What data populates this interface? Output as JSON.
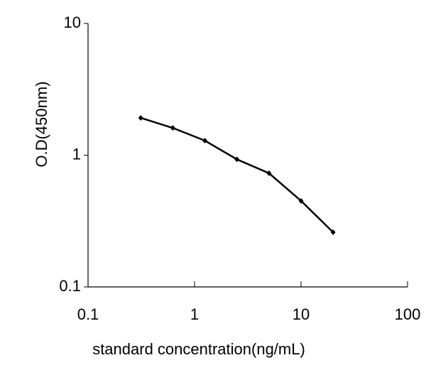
{
  "chart_data": {
    "type": "line",
    "x_label": "standard concentration(ng/mL)",
    "y_label": "O.D(450nm)",
    "x": [
      0.3125,
      0.625,
      1.25,
      2.5,
      5,
      10,
      20
    ],
    "series": [
      {
        "color": "#000000",
        "values": [
          1.92,
          1.61,
          1.29,
          0.93,
          0.73,
          0.45,
          0.26
        ]
      }
    ],
    "xlim": [
      0.1,
      100
    ],
    "ylim": [
      0.1,
      10
    ],
    "xticks": [
      0.1,
      1,
      10,
      100
    ],
    "yticks": [
      0.1,
      1,
      10
    ],
    "xscale": "log",
    "yscale": "log",
    "grid": false
  }
}
